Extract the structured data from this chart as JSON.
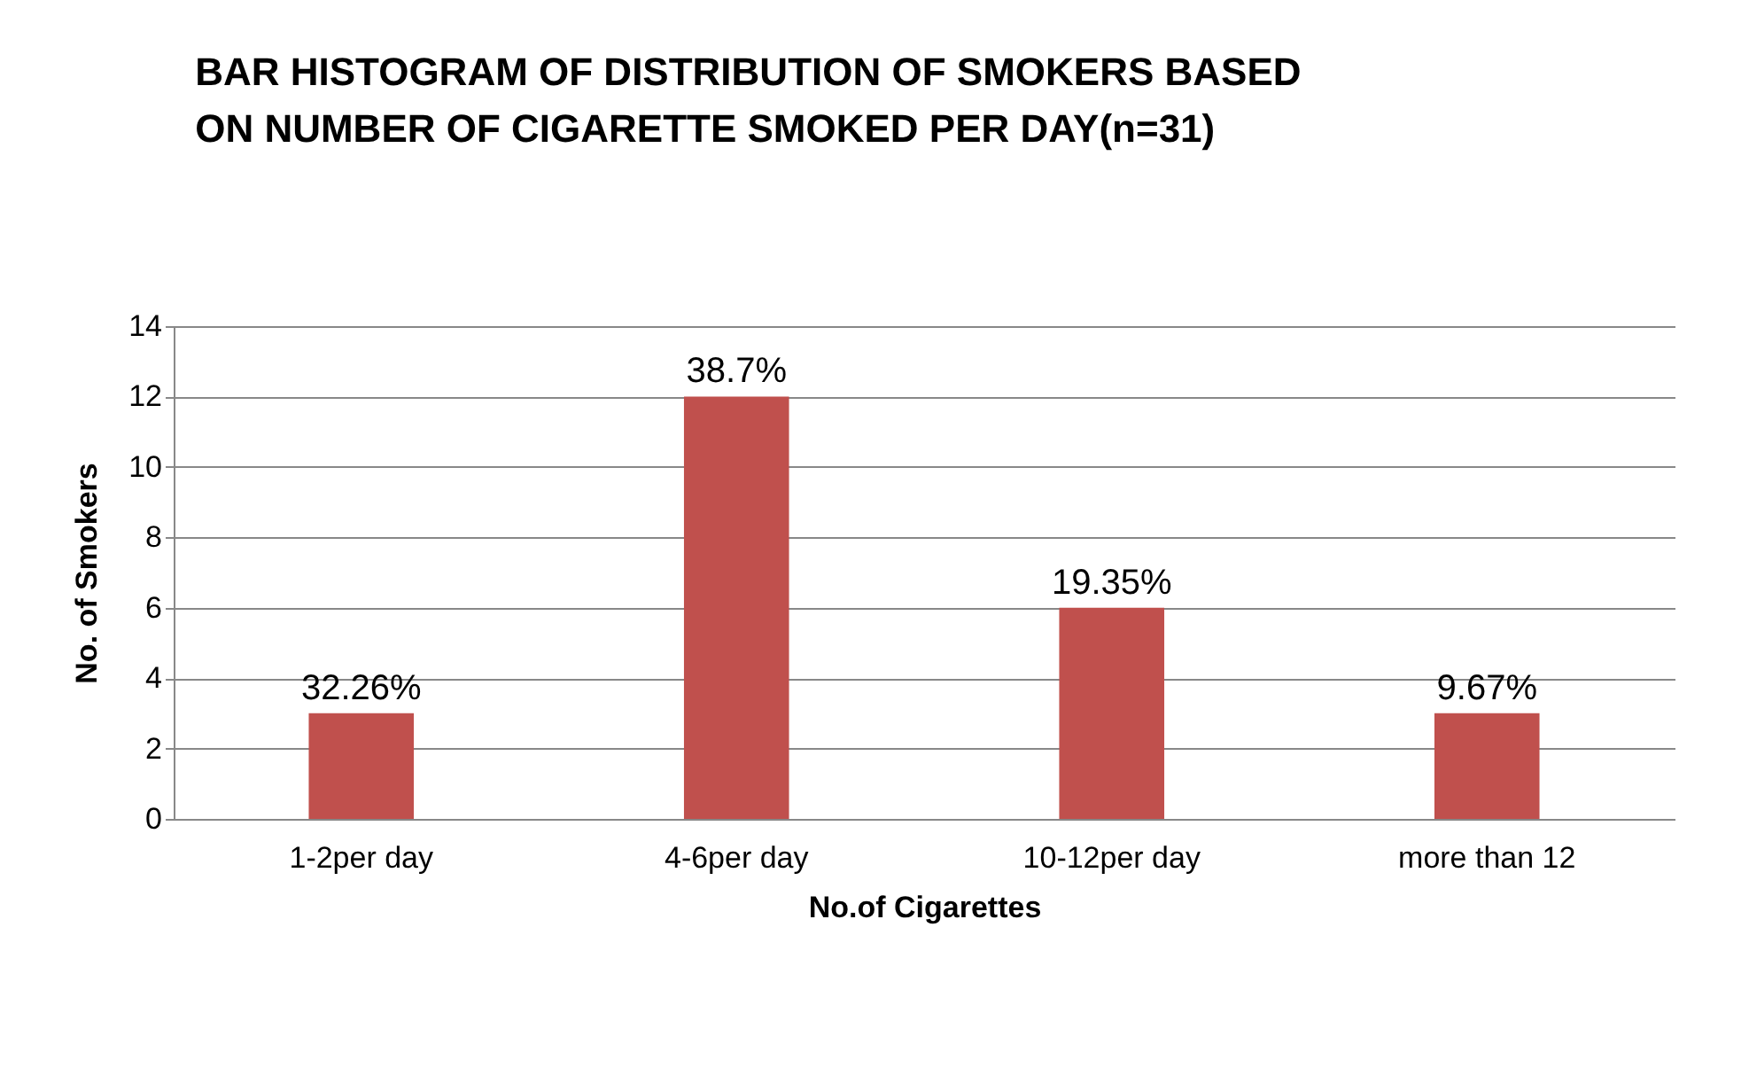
{
  "chart_data": {
    "type": "bar",
    "title": "BAR HISTOGRAM OF DISTRIBUTION OF SMOKERS BASED ON NUMBER OF CIGARETTE SMOKED PER DAY(n=31)",
    "xlabel": "No.of Cigarettes",
    "ylabel": "No. of Smokers",
    "categories": [
      "1-2per day",
      "4-6per day",
      "10-12per day",
      "more than 12"
    ],
    "values": [
      3,
      12,
      6,
      3
    ],
    "annotations": [
      {
        "text": "32.26%",
        "x": "1-2per day",
        "y": 3
      },
      {
        "text": "38.7%",
        "x": "4-6per day",
        "y": 12
      },
      {
        "text": "19.35%",
        "x": "10-12per day",
        "y": 6
      },
      {
        "text": "9.67%",
        "x": "more than 12",
        "y": 3
      }
    ],
    "color": "#c0504d",
    "ylim": [
      0,
      14
    ],
    "yticks": [
      0,
      2,
      4,
      6,
      8,
      10,
      12,
      14
    ],
    "grid": "y"
  }
}
